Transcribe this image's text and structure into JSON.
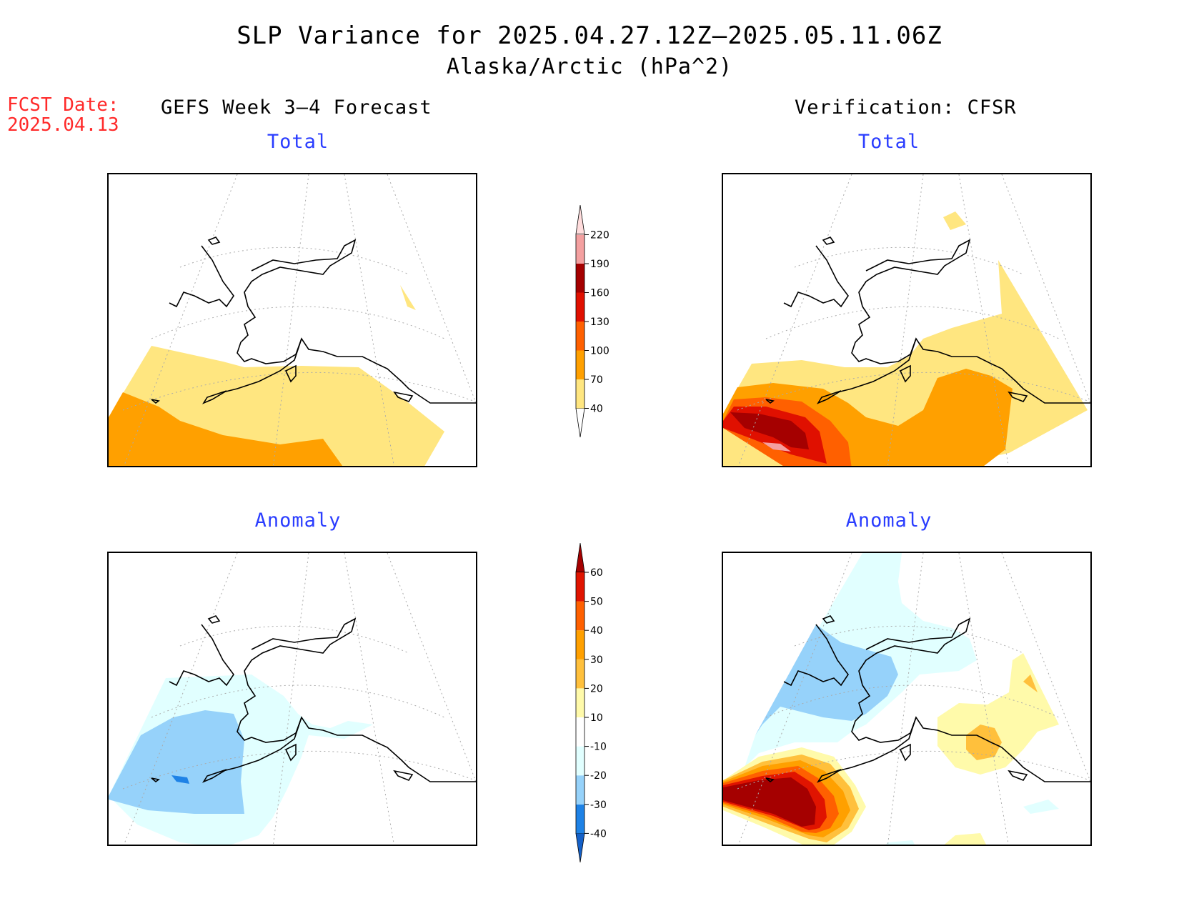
{
  "title": {
    "line1": "SLP Variance for 2025.04.27.12Z–2025.05.11.06Z",
    "line2": "Alaska/Arctic (hPa^2)"
  },
  "forecast_date": {
    "label": "FCST Date:",
    "value": "2025.04.13"
  },
  "columns": {
    "left": "GEFS Week 3–4 Forecast",
    "right": "Verification: CFSR"
  },
  "panels": [
    {
      "id": "forecast-total",
      "title": "Total"
    },
    {
      "id": "verification-total",
      "title": "Total"
    },
    {
      "id": "forecast-anomaly",
      "title": "Anomaly"
    },
    {
      "id": "verification-anomaly",
      "title": "Anomaly"
    }
  ],
  "colorbars": {
    "total": {
      "labels": [
        "40",
        "70",
        "100",
        "130",
        "160",
        "190",
        "220"
      ],
      "colors": [
        "#ffffff",
        "#ffe680",
        "#ffa000",
        "#ff6000",
        "#e01000",
        "#a50000",
        "#f4a0a0",
        "#ffdcdc"
      ]
    },
    "anomaly": {
      "labels": [
        "-40",
        "-30",
        "-20",
        "-10",
        "10",
        "20",
        "30",
        "40",
        "50",
        "60"
      ],
      "colors": [
        "#1460c8",
        "#1e82e6",
        "#96d2fa",
        "#e1ffff",
        "#ffffff",
        "#fffaaa",
        "#ffc03c",
        "#ffa000",
        "#ff6000",
        "#e01400",
        "#a50000"
      ]
    }
  },
  "palette": {
    "title_text": "#000000",
    "panel_title": "#2a3dff",
    "forecast_date": "#ff2a2a"
  }
}
